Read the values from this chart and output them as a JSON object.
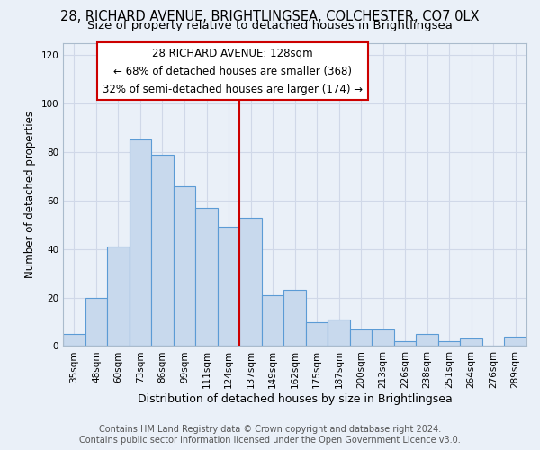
{
  "title": "28, RICHARD AVENUE, BRIGHTLINGSEA, COLCHESTER, CO7 0LX",
  "subtitle": "Size of property relative to detached houses in Brightlingsea",
  "xlabel": "Distribution of detached houses by size in Brightlingsea",
  "ylabel": "Number of detached properties",
  "bar_labels": [
    "35sqm",
    "48sqm",
    "60sqm",
    "73sqm",
    "86sqm",
    "99sqm",
    "111sqm",
    "124sqm",
    "137sqm",
    "149sqm",
    "162sqm",
    "175sqm",
    "187sqm",
    "200sqm",
    "213sqm",
    "226sqm",
    "238sqm",
    "251sqm",
    "264sqm",
    "276sqm",
    "289sqm"
  ],
  "bar_values": [
    5,
    20,
    41,
    85,
    79,
    66,
    57,
    49,
    53,
    21,
    23,
    10,
    11,
    7,
    7,
    2,
    5,
    2,
    3,
    0,
    4
  ],
  "bar_color": "#c8d9ed",
  "bar_edge_color": "#5b9bd5",
  "vline_x_index": 7.5,
  "vline_color": "#cc0000",
  "annotation_line1": "28 RICHARD AVENUE: 128sqm",
  "annotation_line2": "← 68% of detached houses are smaller (368)",
  "annotation_line3": "32% of semi-detached houses are larger (174) →",
  "annotation_box_facecolor": "#ffffff",
  "annotation_box_edgecolor": "#cc0000",
  "ylim": [
    0,
    125
  ],
  "yticks": [
    0,
    20,
    40,
    60,
    80,
    100,
    120
  ],
  "grid_color": "#d0d8e8",
  "background_color": "#eaf0f8",
  "footer_text": "Contains HM Land Registry data © Crown copyright and database right 2024.\nContains public sector information licensed under the Open Government Licence v3.0.",
  "title_fontsize": 10.5,
  "subtitle_fontsize": 9.5,
  "xlabel_fontsize": 9,
  "ylabel_fontsize": 8.5,
  "tick_fontsize": 7.5,
  "annotation_fontsize": 8.5,
  "footer_fontsize": 7
}
